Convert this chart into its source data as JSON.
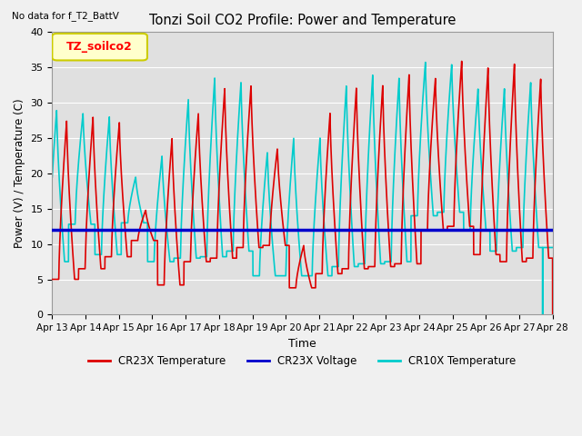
{
  "title": "Tonzi Soil CO2 Profile: Power and Temperature",
  "no_data_text": "No data for f_T2_BattV",
  "xlabel": "Time",
  "ylabel": "Power (V) / Temperature (C)",
  "ylim": [
    0,
    40
  ],
  "yticks": [
    0,
    5,
    10,
    15,
    20,
    25,
    30,
    35,
    40
  ],
  "xtick_labels": [
    "Apr 13",
    "Apr 14",
    "Apr 15",
    "Apr 16",
    "Apr 17",
    "Apr 18",
    "Apr 19",
    "Apr 20",
    "Apr 21",
    "Apr 22",
    "Apr 23",
    "Apr 24",
    "Apr 25",
    "Apr 26",
    "Apr 27",
    "Apr 28"
  ],
  "bg_color": "#e0e0e0",
  "grid_color": "#ffffff",
  "legend_label_box": "TZ_soilco2",
  "legend_box_color": "#ffffcc",
  "legend_box_edge": "#cccc00",
  "cr23x_color": "#dd0000",
  "cr10x_color": "#00cccc",
  "voltage_color": "#0000cc",
  "voltage_value": 12.0,
  "line_width": 1.2,
  "fig_facecolor": "#f0f0f0",
  "cr23x_peaks": [
    27.5,
    28.0,
    27.2,
    14.8,
    25.0,
    28.5,
    32.0,
    32.5,
    23.5,
    9.8,
    28.5,
    32.2,
    32.5,
    34.0,
    33.5,
    36.0,
    35.0,
    35.5,
    33.5
  ],
  "cr23x_mins": [
    5.0,
    6.5,
    8.2,
    10.5,
    4.2,
    7.5,
    8.0,
    9.5,
    9.8,
    3.8,
    5.8,
    6.5,
    6.8,
    7.2,
    12.0,
    12.5,
    8.5,
    7.5,
    8.0
  ],
  "cr10x_peaks": [
    29.0,
    28.5,
    28.0,
    19.5,
    22.5,
    30.5,
    33.5,
    33.0,
    23.0,
    25.0,
    25.0,
    32.5,
    34.0,
    33.5,
    35.8,
    35.5,
    32.0,
    32.0,
    33.0
  ],
  "cr10x_mins": [
    7.5,
    12.8,
    8.5,
    13.0,
    7.5,
    8.0,
    8.2,
    9.0,
    5.5,
    5.5,
    5.5,
    6.8,
    7.2,
    7.5,
    14.0,
    14.5,
    12.0,
    9.0,
    9.5
  ]
}
